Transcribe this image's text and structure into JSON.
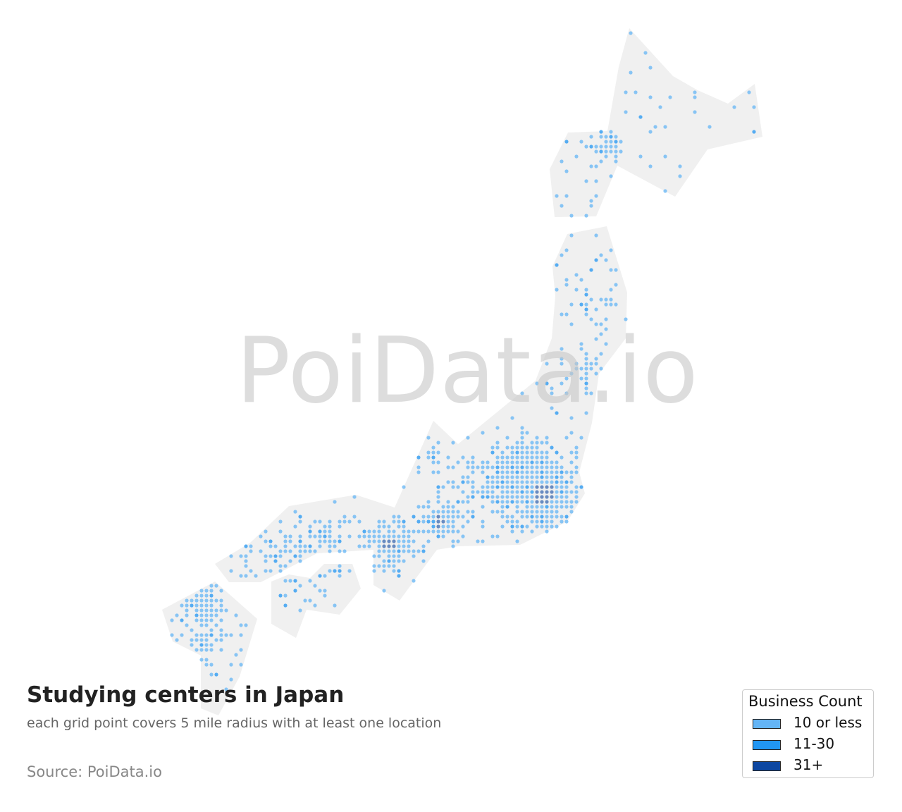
{
  "watermark": "PoiData.io",
  "title": "Studying centers in Japan",
  "subtitle": "each grid point covers 5 mile radius with at least one location",
  "source": "Source: PoiData.io",
  "land_color": "#f0f0f0",
  "legend": {
    "title": "Business Count",
    "items": [
      {
        "label": "10 or less",
        "color": "#64b5f6"
      },
      {
        "label": "11-30",
        "color": "#2196f3"
      },
      {
        "label": "31+",
        "color": "#0d47a1"
      }
    ]
  }
}
